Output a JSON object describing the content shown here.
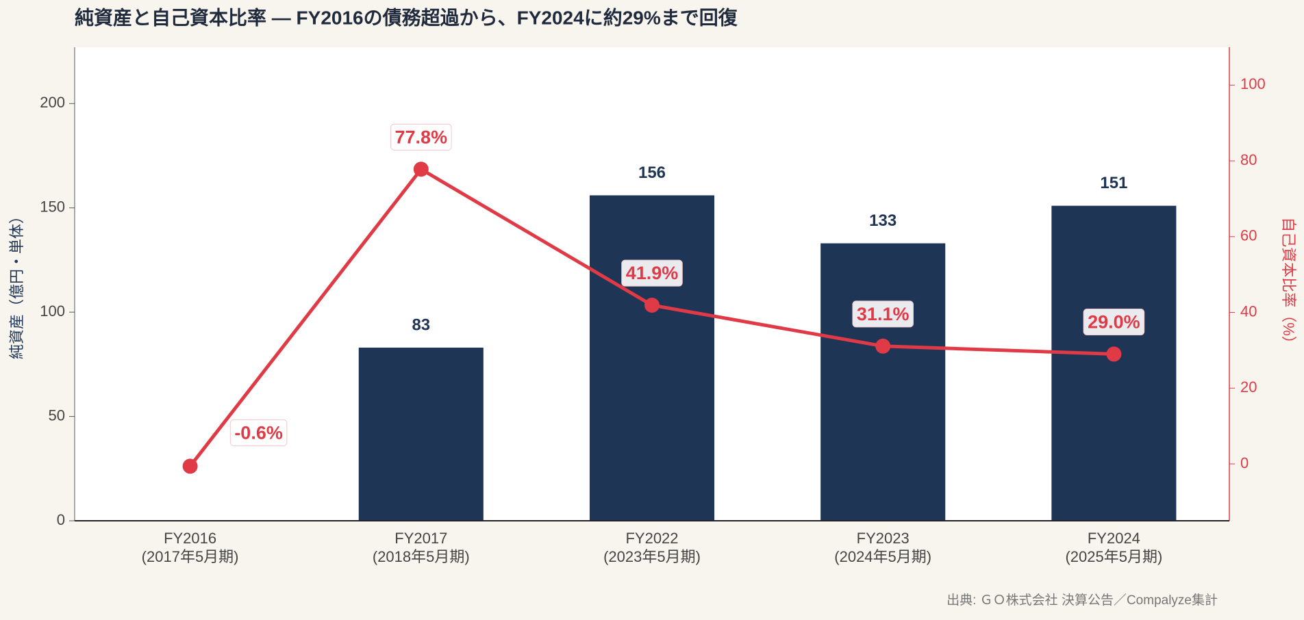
{
  "chart_data": {
    "type": "bar+line",
    "title": "純資産と自己資本比率 ― FY2016の債務超過から、FY2024に約29%まで回復",
    "categories": [
      "FY2016",
      "FY2017",
      "FY2022",
      "FY2023",
      "FY2024"
    ],
    "subcategories": [
      "(2017年5月期)",
      "(2018年5月期)",
      "(2023年5月期)",
      "(2024年5月期)",
      "(2025年5月期)"
    ],
    "y_label": "純資産（億円・単体）",
    "y2_label": "自己資本比率（%）",
    "source": "出典: ＧＯ株式会社 決算公告／Compalyze集計",
    "ylim": [
      0,
      227
    ],
    "yticks": [
      0,
      50,
      100,
      150,
      200
    ],
    "y2lim": [
      -15,
      110
    ],
    "y2ticks": [
      0,
      20,
      40,
      60,
      80,
      100
    ],
    "grid": false,
    "series": [
      {
        "name": "純資産",
        "type": "bar",
        "color": "#1f3556",
        "values": [
          null,
          83,
          156,
          133,
          151
        ]
      },
      {
        "name": "自己資本比率",
        "type": "line",
        "axis": "y2",
        "color": "#e03a47",
        "values": [
          -0.6,
          77.8,
          41.9,
          31.1,
          29.0
        ],
        "value_labels": [
          "-0.6%",
          "77.8%",
          "41.9%",
          "31.1%",
          "29.0%"
        ]
      }
    ]
  }
}
